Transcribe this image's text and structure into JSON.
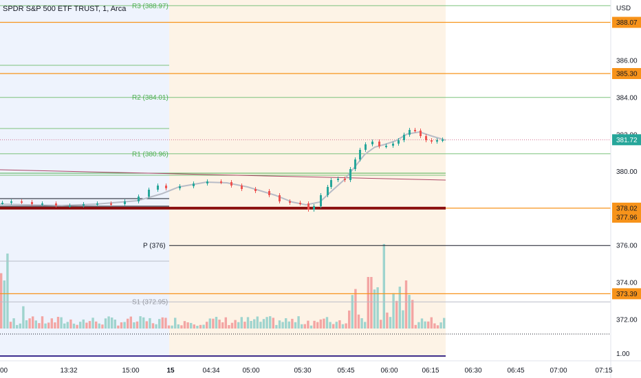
{
  "header": {
    "title": "SPDR S&P 500 ETF TRUST, 1, Arca",
    "currency": "USD"
  },
  "colors": {
    "up": "#26a69a",
    "down": "#ef5350",
    "premarket_bg": "#eef3fd",
    "extended_bg": "#fdf3e6",
    "orange_line": "#f7931a",
    "green_line": "#7cc27c",
    "sma": "#b8bcc7",
    "support_band": "#8b0f0f"
  },
  "price_axis": {
    "ticks": [
      {
        "value": 386,
        "label": "386.00"
      },
      {
        "value": 384,
        "label": "384.00"
      },
      {
        "value": 382,
        "label": "382.00"
      },
      {
        "value": 380,
        "label": "380.00"
      },
      {
        "value": 376,
        "label": "376.00"
      },
      {
        "value": 374,
        "label": "374.00"
      },
      {
        "value": 372,
        "label": "372.00"
      }
    ],
    "extra_tick": "1.00"
  },
  "pivots": [
    {
      "label": "R3 (388.97)",
      "value": 388.97,
      "color": "#7cc27c"
    },
    {
      "label": "R2 (384.01)",
      "value": 384.01,
      "color": "#7cc27c"
    },
    {
      "label": "R1 (380.96)",
      "value": 380.96,
      "color": "#7cc27c"
    },
    {
      "label": "P (376)",
      "value": 376,
      "color": "#131722"
    },
    {
      "label": "S1 (372.95)",
      "value": 372.95,
      "color": "#b8bcc7"
    }
  ],
  "price_badges": [
    {
      "label": "388.07",
      "value": 388.07,
      "style": "orange"
    },
    {
      "label": "385.30",
      "value": 385.3,
      "style": "orange"
    },
    {
      "label": "381.72",
      "value": 381.72,
      "style": "green"
    },
    {
      "label": "378.02",
      "value": 378.02,
      "style": "orange"
    },
    {
      "label": "377.96",
      "value": 377.96,
      "style": "orange"
    },
    {
      "label": "373.39",
      "value": 373.39,
      "style": "orange"
    }
  ],
  "time_axis": [
    {
      "label": "00",
      "bold": false
    },
    {
      "label": "13:32",
      "bold": false
    },
    {
      "label": "15:00",
      "bold": false
    },
    {
      "label": "15",
      "bold": true
    },
    {
      "label": "04:34",
      "bold": false
    },
    {
      "label": "05:00",
      "bold": false
    },
    {
      "label": "05:30",
      "bold": false
    },
    {
      "label": "05:45",
      "bold": false
    },
    {
      "label": "06:00",
      "bold": false
    },
    {
      "label": "06:15",
      "bold": false
    },
    {
      "label": "06:30",
      "bold": false
    },
    {
      "label": "06:45",
      "bold": false
    },
    {
      "label": "07:00",
      "bold": false
    },
    {
      "label": "07:15",
      "bold": false
    }
  ]
}
